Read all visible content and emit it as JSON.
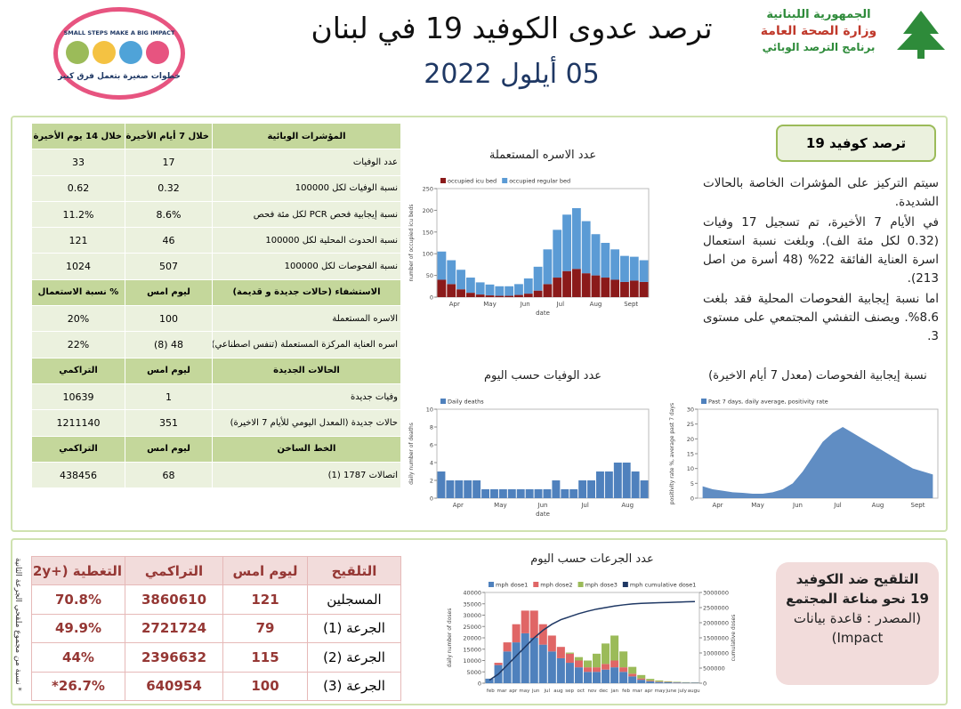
{
  "header": {
    "title": "ترصد عدوى الكوفيد 19 في لبنان",
    "date": "05 أيلول 2022",
    "ministry": [
      "الجمهورية اللبنانية",
      "وزارة الصحة العامة",
      "برنامج الترصد الوبائي"
    ],
    "campaign": [
      "SMALL STEPS MAKE A BIG IMPACT",
      "خطوات صغيرة بتعمل فرق كبير"
    ]
  },
  "indicators": {
    "sections": [
      {
        "header": [
          "المؤشرات الوبائية",
          "خلال 7 أيام الأخيرة",
          "خلال 14 يوم الأخيرة"
        ],
        "rows": [
          [
            "عدد الوفيات",
            "17",
            "33"
          ],
          [
            "نسبة الوفيات لكل 100000",
            "0.32",
            "0.62"
          ],
          [
            "نسبة إيجابية فحص PCR لكل مئة فحص",
            "8.6%",
            "11.2%"
          ],
          [
            "نسبة الحدوث المحلية لكل 100000",
            "46",
            "121"
          ],
          [
            "نسبة الفحوصات لكل 100000",
            "507",
            "1024"
          ]
        ]
      },
      {
        "header": [
          "الاستشفاء (حالات جديدة و قديمة)",
          "ليوم امس",
          "% نسبة الاستعمال"
        ],
        "rows": [
          [
            "الاسره المستعملة",
            "100",
            "20%"
          ],
          [
            "اسره العناية المركزة المستعملة (تنفس اصطناعي)",
            "48 (8)",
            "22%"
          ]
        ]
      },
      {
        "header": [
          "الحالات الجديدة",
          "ليوم امس",
          "التراكمي"
        ],
        "rows": [
          [
            "وفيات جديدة",
            "1",
            "10639"
          ],
          [
            "حالات جديدة (المعدل اليومي للأيام 7 الاخيرة)",
            "351",
            "1211140"
          ]
        ]
      },
      {
        "header": [
          "الخط الساخن",
          "ليوم امس",
          "التراكمي"
        ],
        "rows": [
          [
            "اتصالات 1787 (1)",
            "68",
            "438456"
          ]
        ]
      }
    ]
  },
  "summary": {
    "title": "ترصد كوفيد 19",
    "paragraphs": [
      "سيتم التركيز على المؤشرات الخاصة بالحالات الشديدة.",
      "في الأيام 7 الأخيرة، تم تسجيل 17 وفيات (0.32 لكل مئة الف). وبلغت نسبة استعمال اسرة العناية الفائقة 22% (48 أسرة من اصل 213).",
      "اما نسبة إيجابية الفحوصات المحلية فقد بلغت 8.6%. ويصنف التفشي المجتمعي على مستوى 3."
    ]
  },
  "charts": [
    {
      "type": "stacked_bar",
      "title": "عدد الاسره المستعملة",
      "ylabel": "number of occupied icu beds",
      "xlabel": "date",
      "x_labels": [
        "Apr",
        "May",
        "Jun",
        "Jul",
        "Aug",
        "Sept"
      ],
      "ylim": [
        0,
        250
      ],
      "yticks": [
        0,
        50,
        100,
        150,
        200,
        250
      ],
      "series": [
        {
          "name": "occupied icu bed",
          "color": "#8b1a1a",
          "values": [
            40,
            30,
            18,
            10,
            6,
            4,
            3,
            3,
            5,
            8,
            15,
            30,
            45,
            60,
            65,
            55,
            50,
            45,
            40,
            35,
            38,
            35
          ]
        },
        {
          "name": "occupied regular bed",
          "color": "#5b9bd5",
          "values": [
            65,
            55,
            45,
            35,
            28,
            25,
            22,
            22,
            25,
            35,
            55,
            80,
            110,
            130,
            140,
            120,
            95,
            80,
            70,
            60,
            55,
            50
          ]
        }
      ]
    },
    {
      "type": "bar",
      "title": "عدد الوفيات حسب اليوم",
      "ylabel": "daily number of deaths",
      "xlabel": "date",
      "x_labels": [
        "Apr",
        "May",
        "Jun",
        "Jul",
        "Aug"
      ],
      "ylim": [
        0,
        10
      ],
      "yticks": [
        0,
        2,
        4,
        6,
        8,
        10
      ],
      "series": [
        {
          "name": "Daily deaths",
          "color": "#4f81bd",
          "values": [
            3,
            2,
            2,
            2,
            2,
            1,
            1,
            1,
            1,
            1,
            1,
            1,
            1,
            2,
            1,
            1,
            2,
            2,
            3,
            3,
            4,
            4,
            3,
            2
          ]
        }
      ]
    },
    {
      "type": "area",
      "title": "نسبة إيجابية الفحوصات (معدل 7 أيام الاخيرة)",
      "ylabel": "positivity rate %, average past 7 days",
      "x_labels": [
        "Apr",
        "May",
        "Jun",
        "Jul",
        "Aug",
        "Sept"
      ],
      "ylim": [
        0,
        30
      ],
      "yticks": [
        0,
        5,
        10,
        15,
        20,
        25,
        30
      ],
      "series": [
        {
          "name": "Past 7 days, daily average, positivity rate",
          "color": "#4f81bd",
          "values": [
            4,
            3,
            2.5,
            2,
            1.8,
            1.5,
            1.5,
            2,
            3,
            5,
            9,
            14,
            19,
            22,
            24,
            22,
            20,
            18,
            16,
            14,
            12,
            10,
            9,
            8
          ]
        }
      ]
    },
    {
      "type": "bar_line",
      "title": "عدد الجرعات حسب اليوم",
      "ylabel": "daily number of doses",
      "y2label": "cumulative doses",
      "x_labels": [
        "feb",
        "mar",
        "apr",
        "may",
        "jun",
        "jul",
        "aug",
        "sep",
        "oct",
        "nov",
        "dec",
        "jan",
        "feb",
        "mar",
        "apr",
        "may",
        "june",
        "july",
        "augu"
      ],
      "ylim": [
        0,
        40000
      ],
      "yticks": [
        0,
        5000,
        10000,
        15000,
        20000,
        25000,
        30000,
        35000,
        40000
      ],
      "y2lim": [
        0,
        3000000
      ],
      "y2ticks": [
        0,
        500000,
        1000000,
        1500000,
        2000000,
        2500000,
        3000000
      ],
      "series": [
        {
          "name": "mph dose1",
          "color": "#4f81bd",
          "values": [
            2000,
            8000,
            14000,
            18000,
            22000,
            20000,
            17000,
            14000,
            11000,
            9000,
            7000,
            5000,
            5000,
            6000,
            7000,
            5000,
            3000,
            1500,
            800,
            500,
            400,
            300,
            200,
            200
          ]
        },
        {
          "name": "mph dose2",
          "color": "#e06666",
          "values": [
            0,
            1000,
            4000,
            8000,
            10000,
            12000,
            9000,
            7000,
            5000,
            4000,
            3000,
            2000,
            2000,
            2500,
            3000,
            2000,
            1200,
            600,
            300,
            200,
            150,
            100,
            100,
            100
          ]
        },
        {
          "name": "mph dose3",
          "color": "#9bbb59",
          "values": [
            0,
            0,
            0,
            0,
            0,
            0,
            0,
            0,
            0,
            500,
            1500,
            3000,
            6000,
            9000,
            11000,
            7000,
            3000,
            1500,
            800,
            500,
            300,
            200,
            150,
            100
          ]
        },
        {
          "name": "mph cumulative dose1",
          "color": "#1f3864",
          "axis": "y2",
          "values": [
            100000,
            300000,
            600000,
            900000,
            1200000,
            1500000,
            1750000,
            1950000,
            2100000,
            2200000,
            2300000,
            2380000,
            2450000,
            2500000,
            2550000,
            2590000,
            2620000,
            2640000,
            2650000,
            2660000,
            2670000,
            2680000,
            2690000,
            2700000
          ]
        }
      ]
    }
  ],
  "vaccination": {
    "table": {
      "header": [
        "التلقيح",
        "ليوم امس",
        "التراكمي",
        "التغطية (+12y)"
      ],
      "rows": [
        [
          "المسجلين",
          "121",
          "3860610",
          "70.8%"
        ],
        [
          "الجرعة (1)",
          "79",
          "2721724",
          "49.9%"
        ],
        [
          "الجرعة (2)",
          "115",
          "2396632",
          "44%"
        ],
        [
          "الجرعة (3)",
          "100",
          "640954",
          "26.7%*"
        ]
      ]
    },
    "note": "* نسبة من مجموع ملقحي الجرعة الثانية",
    "box": {
      "title": "التلقيح ضد الكوفيد 19 نحو مناعة المجتمع",
      "source": "(المصدر : قاعدة بيانات Impact)"
    }
  }
}
